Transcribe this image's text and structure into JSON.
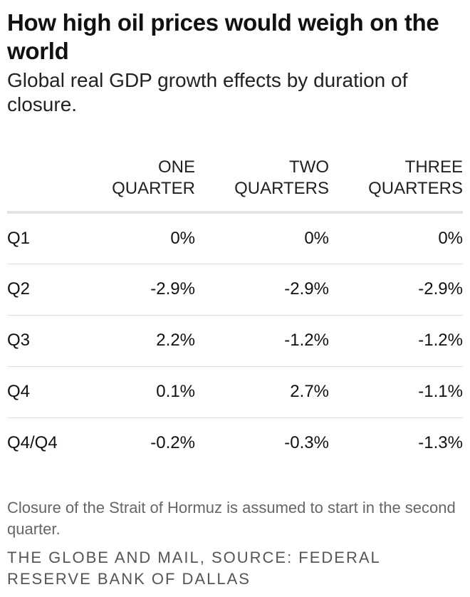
{
  "header": {
    "title": "How high oil prices would weigh on the world",
    "subtitle": "Global real GDP growth effects by duration of closure."
  },
  "chart_data": {
    "type": "table",
    "title": "How high oil prices would weigh on the world",
    "subtitle": "Global real GDP growth effects by duration of closure.",
    "columns": [
      "",
      "ONE QUARTER",
      "TWO QUARTERS",
      "THREE QUARTERS"
    ],
    "rows": [
      [
        "Q1",
        "0%",
        "0%",
        "0%"
      ],
      [
        "Q2",
        "-2.9%",
        "-2.9%",
        "-2.9%"
      ],
      [
        "Q3",
        "2.2%",
        "-1.2%",
        "-1.2%"
      ],
      [
        "Q4",
        "0.1%",
        "2.7%",
        "-1.1%"
      ],
      [
        "Q4/Q4",
        "-0.2%",
        "-0.3%",
        "-1.3%"
      ]
    ]
  },
  "footer": {
    "note": "Closure of the Strait of Hormuz is assumed to start in the second quarter.",
    "source": "THE GLOBE AND MAIL, SOURCE: FEDERAL RESERVE BANK OF DALLAS"
  },
  "colors": {
    "text": "#111111",
    "muted": "#666666",
    "rule": "#dddddd"
  }
}
